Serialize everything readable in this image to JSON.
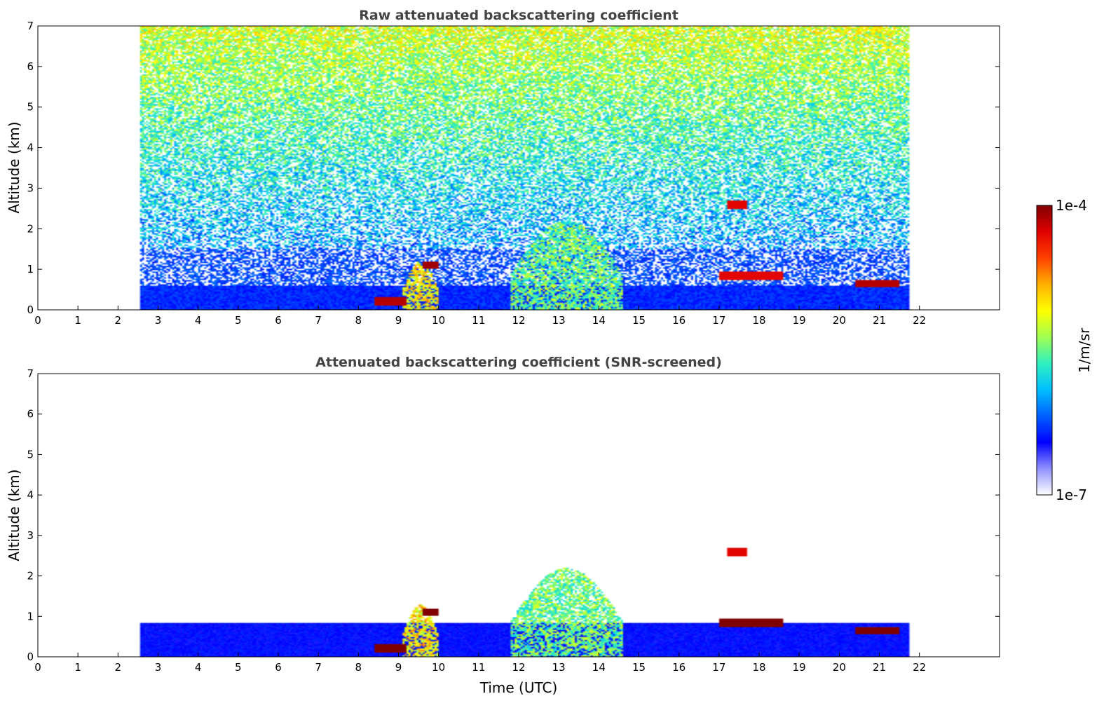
{
  "chart_data": [
    {
      "type": "heatmap",
      "title": "Raw attenuated backscattering coefficient",
      "xlabel": "",
      "ylabel": "Altitude (km)",
      "xlim": [
        0,
        24
      ],
      "ylim": [
        0,
        7
      ],
      "xticks": [
        "0",
        "1",
        "2",
        "3",
        "4",
        "5",
        "6",
        "7",
        "8",
        "9",
        "10",
        "11",
        "12",
        "13",
        "14",
        "15",
        "16",
        "17",
        "18",
        "19",
        "20",
        "21",
        "22"
      ],
      "yticks": [
        "0",
        "1",
        "2",
        "3",
        "4",
        "5",
        "6",
        "7"
      ],
      "data_time_range": [
        2.55,
        21.75
      ],
      "screened": false,
      "features": [
        {
          "kind": "aerosol-layer",
          "time": [
            2.55,
            21.75
          ],
          "altitude_top": 0.6,
          "level": 0.2
        },
        {
          "kind": "thin-cloud",
          "time": [
            8.4,
            9.2
          ],
          "altitude": 0.2,
          "level": 0.95
        },
        {
          "kind": "plume",
          "time": [
            9.1,
            10.0
          ],
          "altitude_top": 1.2,
          "level": 0.65
        },
        {
          "kind": "cloud",
          "time": [
            9.6,
            10.0
          ],
          "altitude": 1.1,
          "level": 0.97
        },
        {
          "kind": "plume",
          "time": [
            11.8,
            14.6
          ],
          "altitude_top": 2.2,
          "level": 0.5
        },
        {
          "kind": "cloud",
          "time": [
            17.2,
            17.7
          ],
          "altitude": 2.6,
          "level": 0.9
        },
        {
          "kind": "cloud",
          "time": [
            17.0,
            18.6
          ],
          "altitude": 0.85,
          "level": 0.9
        },
        {
          "kind": "cloud",
          "time": [
            20.4,
            21.5
          ],
          "altitude": 0.65,
          "level": 0.95
        }
      ]
    },
    {
      "type": "heatmap",
      "title": "Attenuated backscattering coefficient (SNR-screened)",
      "xlabel": "Time (UTC)",
      "ylabel": "Altitude (km)",
      "xlim": [
        0,
        24
      ],
      "ylim": [
        0,
        7
      ],
      "xticks": [
        "0",
        "1",
        "2",
        "3",
        "4",
        "5",
        "6",
        "7",
        "8",
        "9",
        "10",
        "11",
        "12",
        "13",
        "14",
        "15",
        "16",
        "17",
        "18",
        "19",
        "20",
        "21",
        "22"
      ],
      "yticks": [
        "0",
        "1",
        "2",
        "3",
        "4",
        "5",
        "6",
        "7"
      ],
      "data_time_range": [
        2.55,
        21.75
      ],
      "screened": true,
      "features": [
        {
          "kind": "aerosol-layer",
          "time": [
            2.55,
            21.75
          ],
          "altitude_top": 0.85,
          "level": 0.18
        },
        {
          "kind": "thin-cloud",
          "time": [
            8.4,
            9.2
          ],
          "altitude": 0.2,
          "level": 1.0
        },
        {
          "kind": "plume",
          "time": [
            9.1,
            10.0
          ],
          "altitude_top": 1.3,
          "level": 0.65
        },
        {
          "kind": "cloud",
          "time": [
            9.6,
            10.0
          ],
          "altitude": 1.1,
          "level": 1.0
        },
        {
          "kind": "plume",
          "time": [
            11.8,
            14.6
          ],
          "altitude_top": 2.2,
          "level": 0.5
        },
        {
          "kind": "cloud",
          "time": [
            17.2,
            17.7
          ],
          "altitude": 2.6,
          "level": 0.9
        },
        {
          "kind": "cloud",
          "time": [
            17.0,
            18.6
          ],
          "altitude": 0.85,
          "level": 1.0
        },
        {
          "kind": "cloud",
          "time": [
            20.4,
            21.5
          ],
          "altitude": 0.65,
          "level": 1.0
        }
      ]
    }
  ],
  "colorbar": {
    "label": "1/m/sr",
    "max_label": "1e-4",
    "min_label": "1e-7",
    "range": [
      1e-07,
      0.0001
    ],
    "scale": "log",
    "colormap": [
      "#ffffff",
      "#9090ff",
      "#0000ff",
      "#0060ff",
      "#00c0ff",
      "#30f0c0",
      "#a0ff50",
      "#ffff00",
      "#ffb000",
      "#ff4000",
      "#e00000",
      "#800000"
    ]
  }
}
